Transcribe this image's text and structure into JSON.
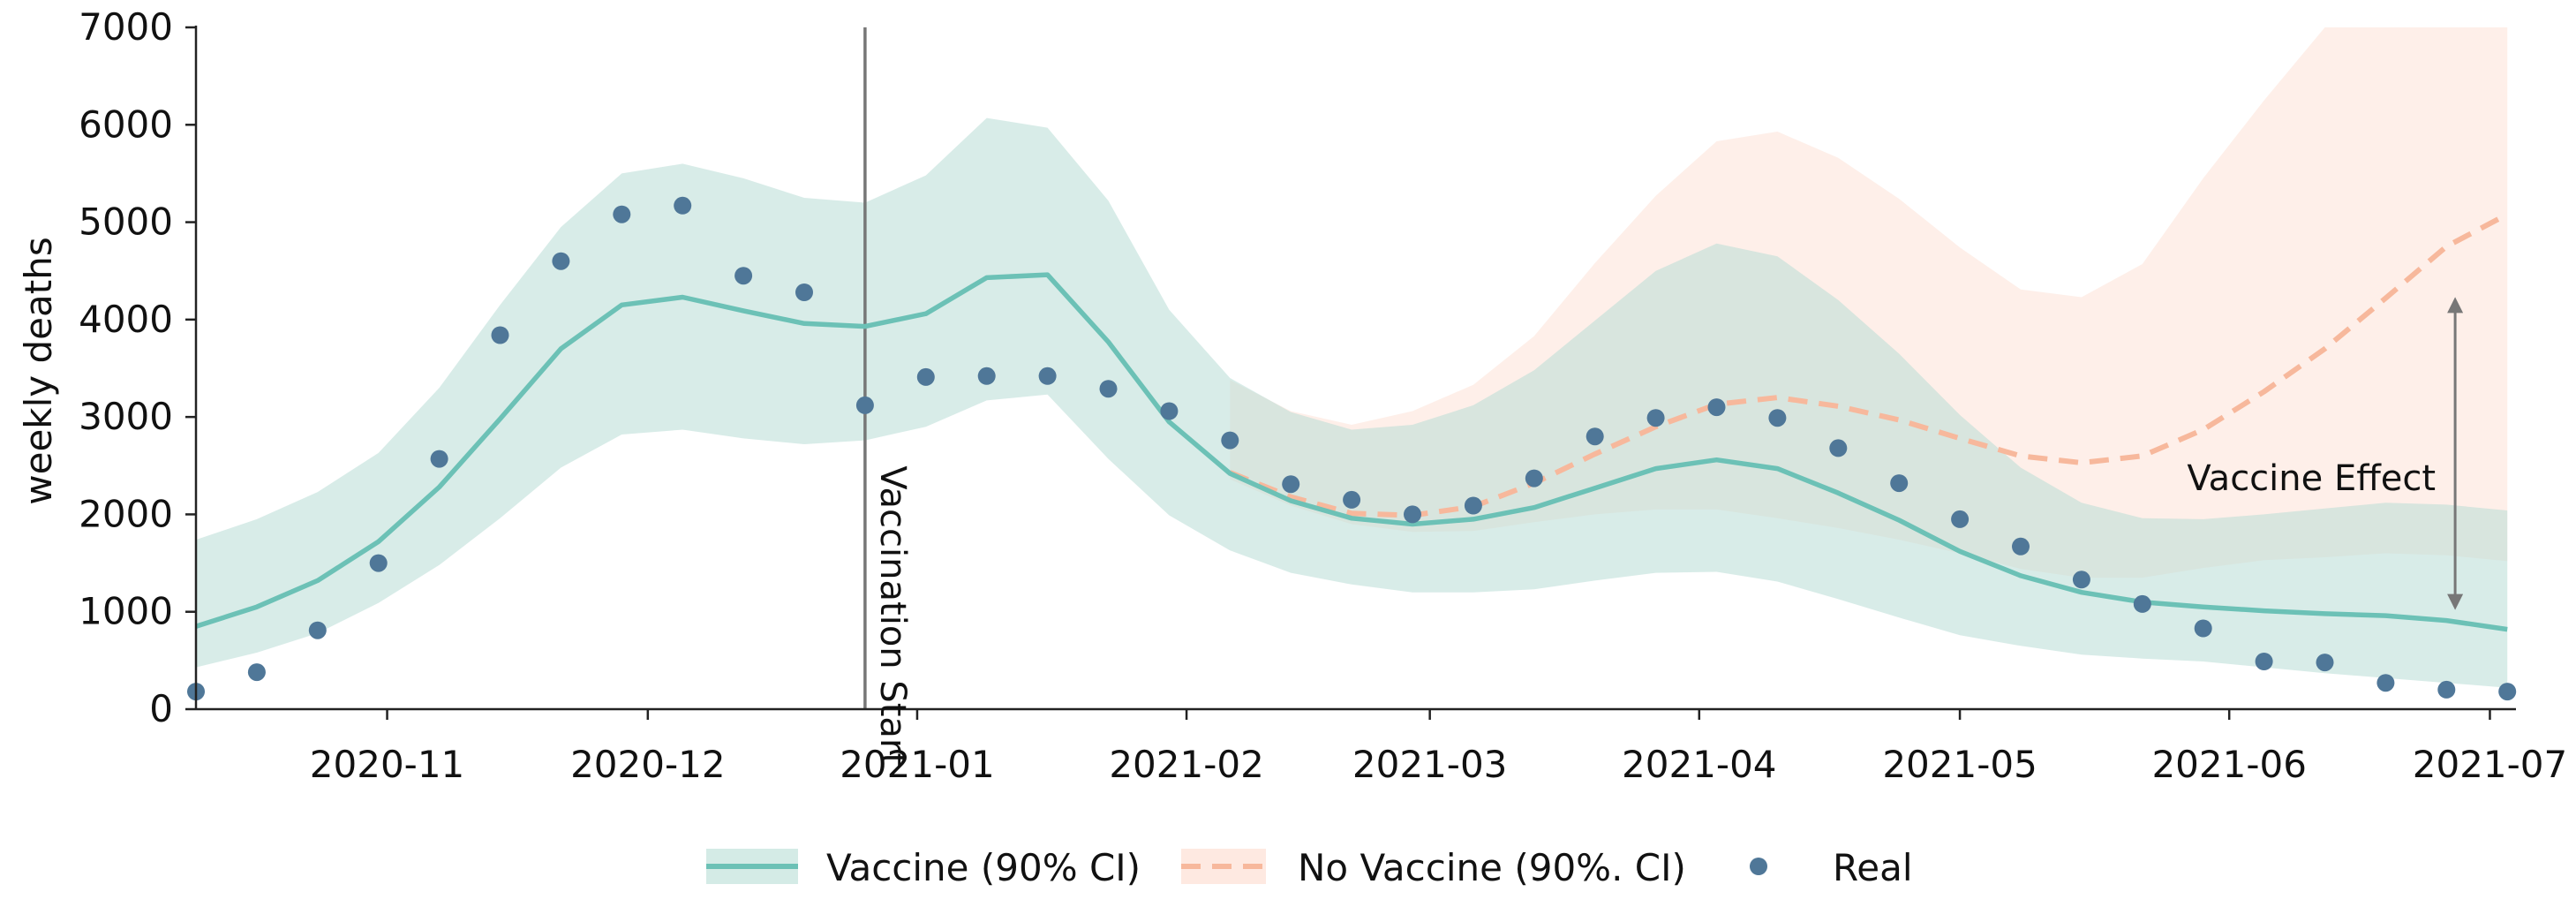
{
  "chart_data": {
    "type": "line",
    "ylabel": "weekly deaths",
    "xlabel": "",
    "x_axis_type": "date",
    "xlim": [
      "2020-10-10",
      "2021-07-04"
    ],
    "ylim": [
      0,
      7000
    ],
    "x_ticks": [
      "2020-11-01",
      "2020-12-01",
      "2021-01-01",
      "2021-02-01",
      "2021-03-01",
      "2021-04-01",
      "2021-05-01",
      "2021-06-01",
      "2021-07-01"
    ],
    "x_tick_labels": [
      "2020-11",
      "2020-12",
      "2021-01",
      "2021-02",
      "2021-03",
      "2021-04",
      "2021-05",
      "2021-06",
      "2021-07"
    ],
    "y_ticks": [
      0,
      1000,
      2000,
      3000,
      4000,
      5000,
      6000,
      7000
    ],
    "y_tick_labels": [
      "0",
      "1000",
      "2000",
      "3000",
      "4000",
      "5000",
      "6000",
      "7000"
    ],
    "grid": false,
    "legend_position": "bottom",
    "colors": {
      "vaccine_line": "#6cc1b6",
      "vaccine_band": "#b8ddd6",
      "no_vaccine_line": "#f7b89c",
      "no_vaccine_band": "#fde0d4",
      "real_points": "#4f7798",
      "annotation": "#777777"
    },
    "series": [
      {
        "name": "Vaccine (90% CI)",
        "style": "solid-line-with-band",
        "x": [
          "2020-10-10",
          "2020-10-17",
          "2020-10-24",
          "2020-10-31",
          "2020-11-07",
          "2020-11-14",
          "2020-11-21",
          "2020-11-28",
          "2020-12-05",
          "2020-12-12",
          "2020-12-19",
          "2020-12-26",
          "2021-01-02",
          "2021-01-09",
          "2021-01-16",
          "2021-01-23",
          "2021-01-30",
          "2021-02-06",
          "2021-02-13",
          "2021-02-20",
          "2021-02-27",
          "2021-03-06",
          "2021-03-13",
          "2021-03-20",
          "2021-03-27",
          "2021-04-03",
          "2021-04-10",
          "2021-04-17",
          "2021-04-24",
          "2021-05-01",
          "2021-05-08",
          "2021-05-15",
          "2021-05-22",
          "2021-05-29",
          "2021-06-05",
          "2021-06-12",
          "2021-06-19",
          "2021-06-26",
          "2021-07-03"
        ],
        "y": [
          850,
          1050,
          1320,
          1720,
          2280,
          2980,
          3700,
          4150,
          4230,
          4090,
          3960,
          3930,
          4060,
          4430,
          4460,
          3770,
          2950,
          2420,
          2140,
          1960,
          1900,
          1950,
          2070,
          2270,
          2470,
          2560,
          2470,
          2220,
          1940,
          1620,
          1370,
          1200,
          1100,
          1050,
          1010,
          980,
          960,
          910,
          820
        ],
        "lower": [
          430,
          580,
          780,
          1090,
          1480,
          1960,
          2480,
          2820,
          2870,
          2780,
          2720,
          2760,
          2900,
          3170,
          3230,
          2570,
          1990,
          1630,
          1400,
          1280,
          1200,
          1200,
          1230,
          1320,
          1400,
          1410,
          1310,
          1130,
          940,
          760,
          650,
          560,
          520,
          490,
          430,
          370,
          320,
          270,
          220
        ],
        "upper": [
          1740,
          1950,
          2230,
          2630,
          3300,
          4150,
          4950,
          5500,
          5600,
          5450,
          5250,
          5200,
          5480,
          6070,
          5970,
          5220,
          4100,
          3400,
          3050,
          2870,
          2920,
          3120,
          3480,
          3990,
          4500,
          4780,
          4650,
          4200,
          3650,
          3020,
          2480,
          2120,
          1960,
          1950,
          2000,
          2060,
          2120,
          2100,
          2040
        ]
      },
      {
        "name": "No Vaccine (90%. CI)",
        "style": "dashed-line-with-band",
        "x": [
          "2021-02-06",
          "2021-02-13",
          "2021-02-20",
          "2021-02-27",
          "2021-03-06",
          "2021-03-13",
          "2021-03-20",
          "2021-03-27",
          "2021-04-03",
          "2021-04-10",
          "2021-04-17",
          "2021-04-24",
          "2021-05-01",
          "2021-05-08",
          "2021-05-15",
          "2021-05-22",
          "2021-05-29",
          "2021-06-05",
          "2021-06-12",
          "2021-06-19",
          "2021-06-26",
          "2021-07-03"
        ],
        "y": [
          2430,
          2180,
          2010,
          1990,
          2080,
          2320,
          2620,
          2900,
          3130,
          3200,
          3110,
          2970,
          2780,
          2600,
          2530,
          2600,
          2870,
          3260,
          3700,
          4220,
          4750,
          5080
        ],
        "lower": [
          2360,
          2090,
          1900,
          1820,
          1830,
          1920,
          2000,
          2050,
          2050,
          1960,
          1860,
          1740,
          1600,
          1440,
          1350,
          1350,
          1450,
          1530,
          1560,
          1600,
          1580,
          1520
        ],
        "upper": [
          3380,
          3060,
          2920,
          3060,
          3330,
          3830,
          4580,
          5270,
          5830,
          5930,
          5660,
          5240,
          4740,
          4310,
          4230,
          4570,
          5450,
          6250,
          7000,
          7000,
          7000,
          7000
        ]
      },
      {
        "name": "Real",
        "style": "points",
        "x": [
          "2020-10-10",
          "2020-10-17",
          "2020-10-24",
          "2020-10-31",
          "2020-11-07",
          "2020-11-14",
          "2020-11-21",
          "2020-11-28",
          "2020-12-05",
          "2020-12-12",
          "2020-12-19",
          "2020-12-26",
          "2021-01-02",
          "2021-01-09",
          "2021-01-16",
          "2021-01-23",
          "2021-01-30",
          "2021-02-06",
          "2021-02-13",
          "2021-02-20",
          "2021-02-27",
          "2021-03-06",
          "2021-03-13",
          "2021-03-20",
          "2021-03-27",
          "2021-04-03",
          "2021-04-10",
          "2021-04-17",
          "2021-04-24",
          "2021-05-01",
          "2021-05-08",
          "2021-05-15",
          "2021-05-22",
          "2021-05-29",
          "2021-06-05",
          "2021-06-12",
          "2021-06-19",
          "2021-06-26",
          "2021-07-03"
        ],
        "y": [
          180,
          380,
          810,
          1500,
          2570,
          3840,
          4600,
          5080,
          5170,
          4450,
          4280,
          3120,
          3410,
          3420,
          3420,
          3290,
          3060,
          2760,
          2310,
          2150,
          2000,
          2090,
          2370,
          2800,
          2990,
          3100,
          2990,
          2680,
          2320,
          1950,
          1670,
          1330,
          1080,
          830,
          490,
          480,
          270,
          200,
          180
        ]
      }
    ],
    "annotations": [
      {
        "type": "vline",
        "x": "2020-12-26",
        "label": "Vaccination Start",
        "color": "#777777"
      },
      {
        "type": "double-arrow",
        "x": "2021-06-27",
        "y_from": 1100,
        "y_to": 4150,
        "label": "Vaccine Effect",
        "color": "#777777"
      }
    ]
  }
}
